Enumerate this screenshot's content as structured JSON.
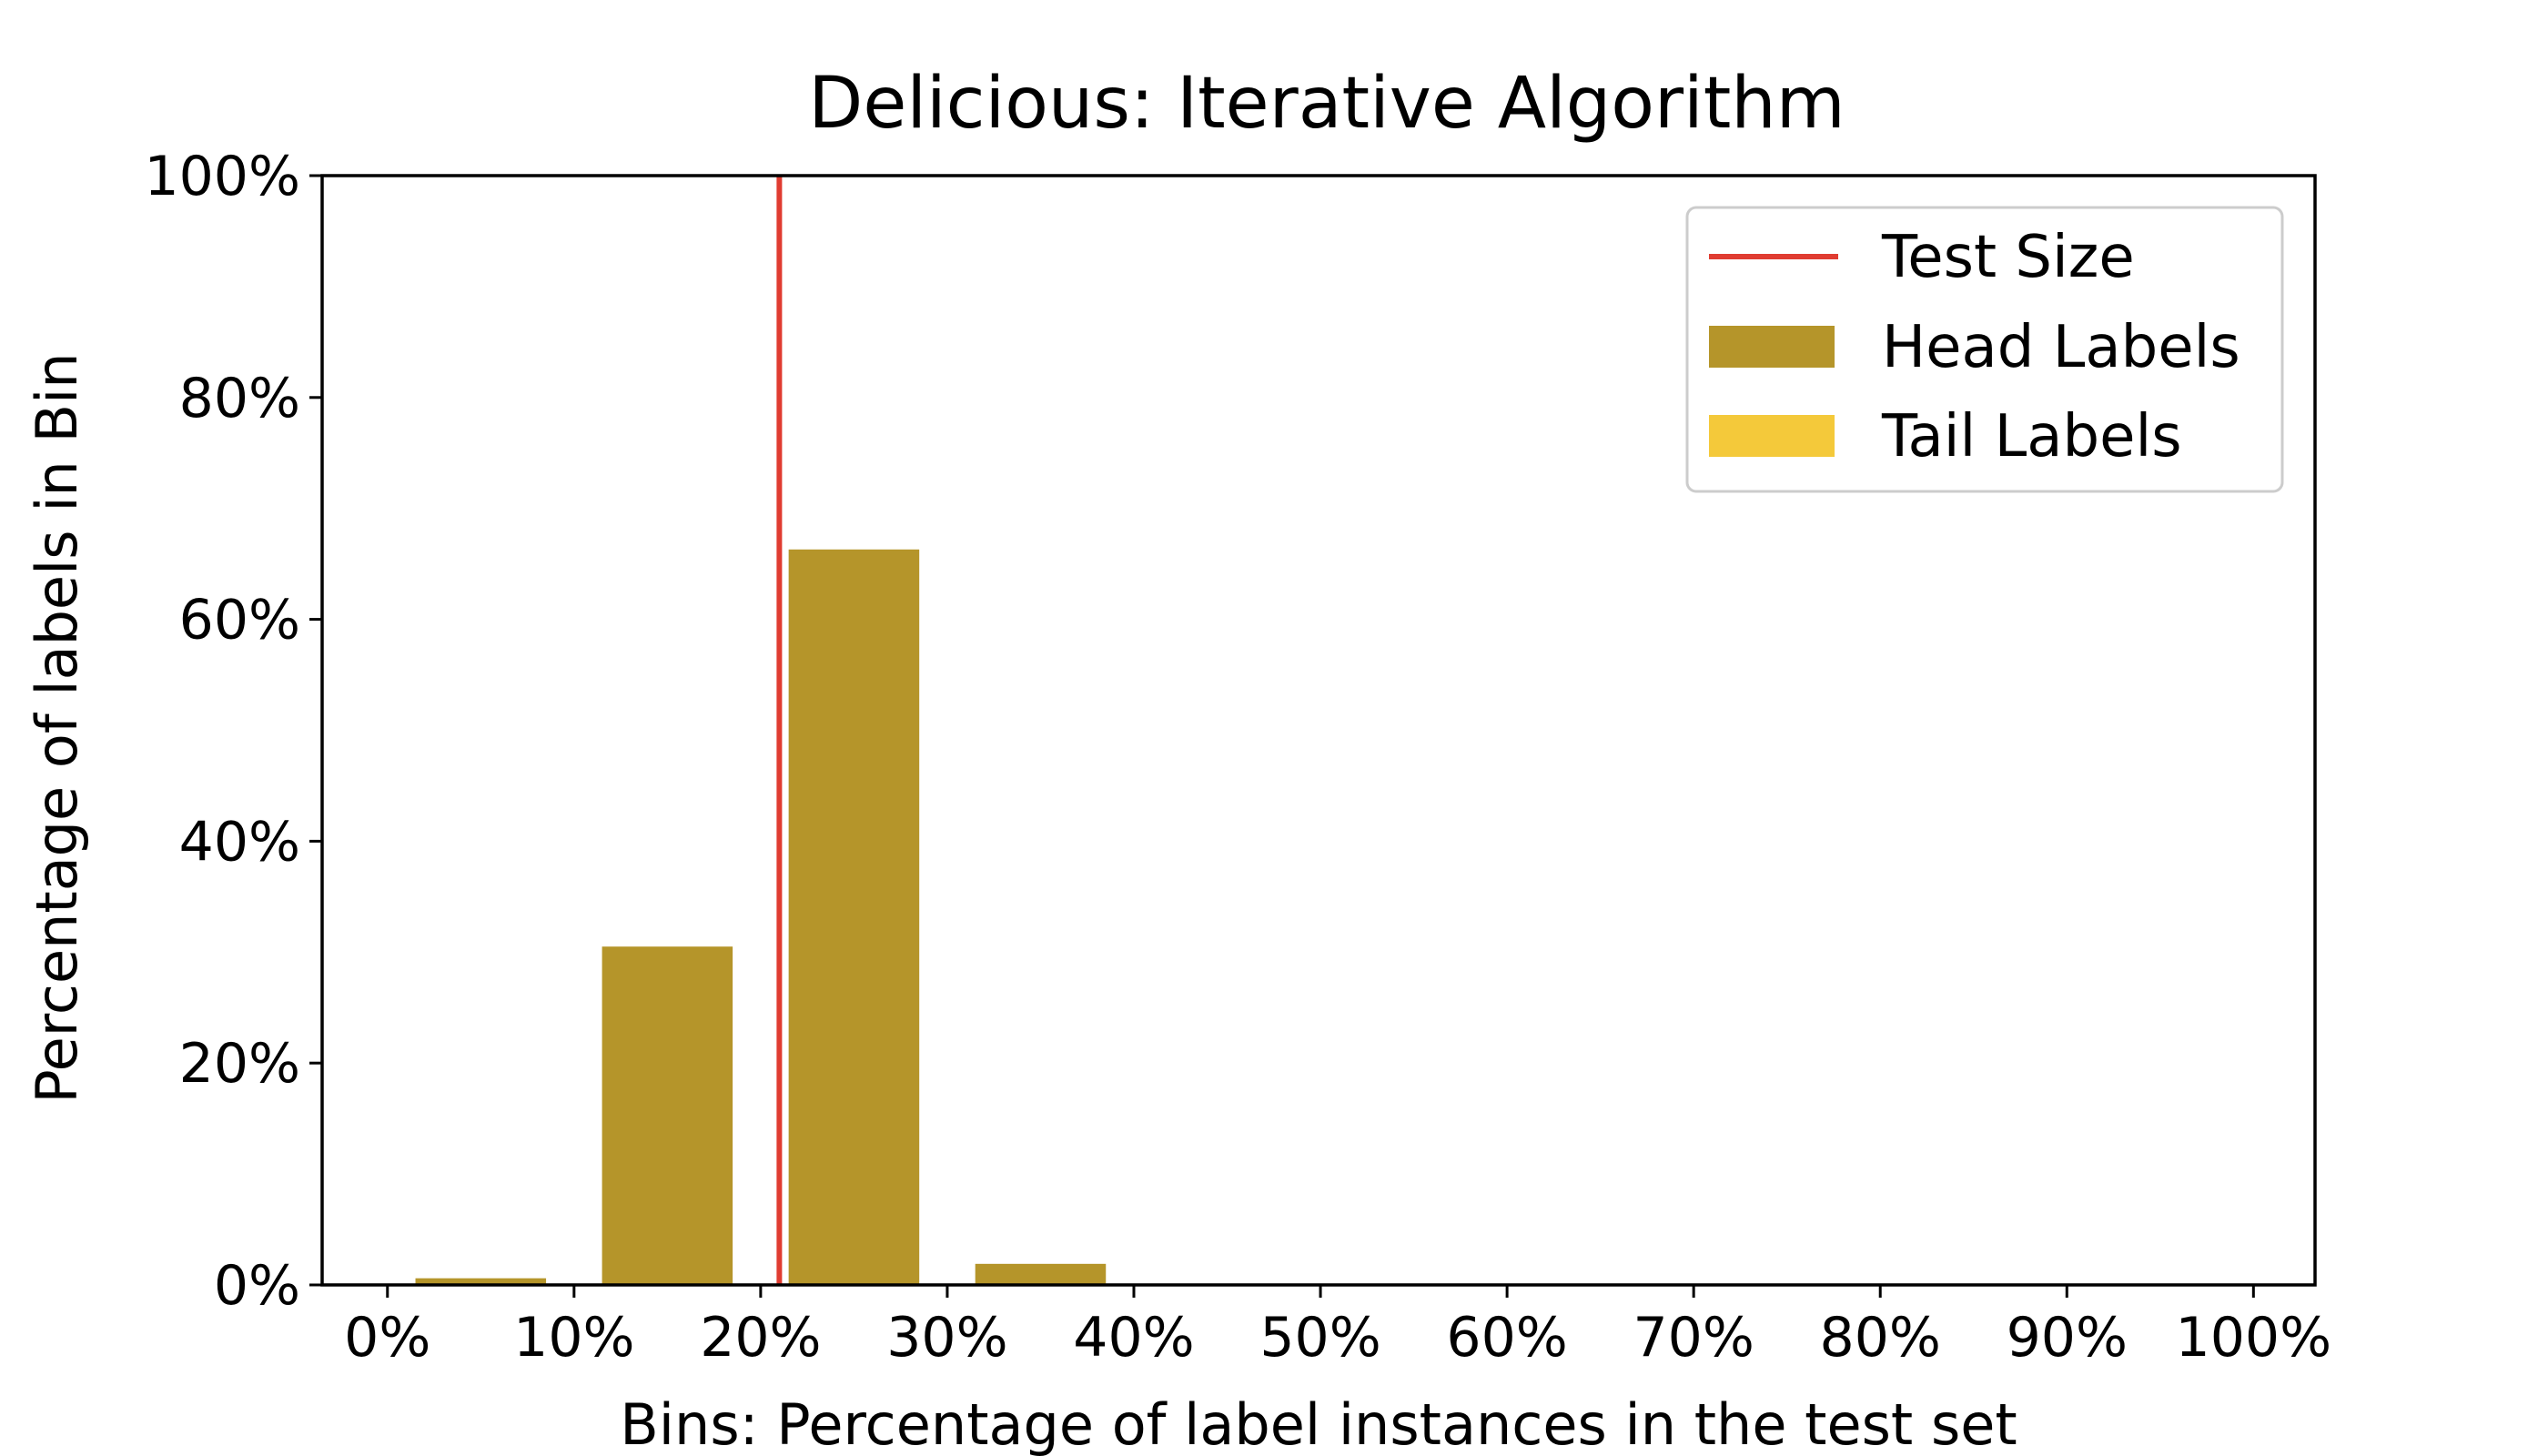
{
  "chart_data": {
    "type": "bar",
    "title": "Delicious: Iterative Algorithm",
    "xlabel": "Bins: Percentage of label instances in the test set",
    "ylabel": "Percentage of labels in Bin",
    "x_ticks": [
      "0%",
      "10%",
      "20%",
      "30%",
      "40%",
      "50%",
      "60%",
      "70%",
      "80%",
      "90%",
      "100%"
    ],
    "y_ticks": [
      "0%",
      "20%",
      "40%",
      "60%",
      "80%",
      "100%"
    ],
    "xlim": [
      -3.5,
      103.3
    ],
    "ylim": [
      0,
      100
    ],
    "bin_width": 7,
    "series": [
      {
        "name": "Head Labels",
        "color": "#b5952a",
        "bins": [
          {
            "x": 5,
            "value": 0.6
          },
          {
            "x": 15,
            "value": 30.5
          },
          {
            "x": 25,
            "value": 66.3
          },
          {
            "x": 35,
            "value": 1.9
          }
        ]
      },
      {
        "name": "Tail Labels",
        "color": "#f4c93a",
        "bins": []
      }
    ],
    "reference_line": {
      "name": "Test Size",
      "x": 21,
      "color": "#e03c31"
    },
    "legend": {
      "position": "top-right",
      "entries": [
        "Test Size",
        "Head Labels",
        "Tail Labels"
      ]
    },
    "grid": false
  }
}
